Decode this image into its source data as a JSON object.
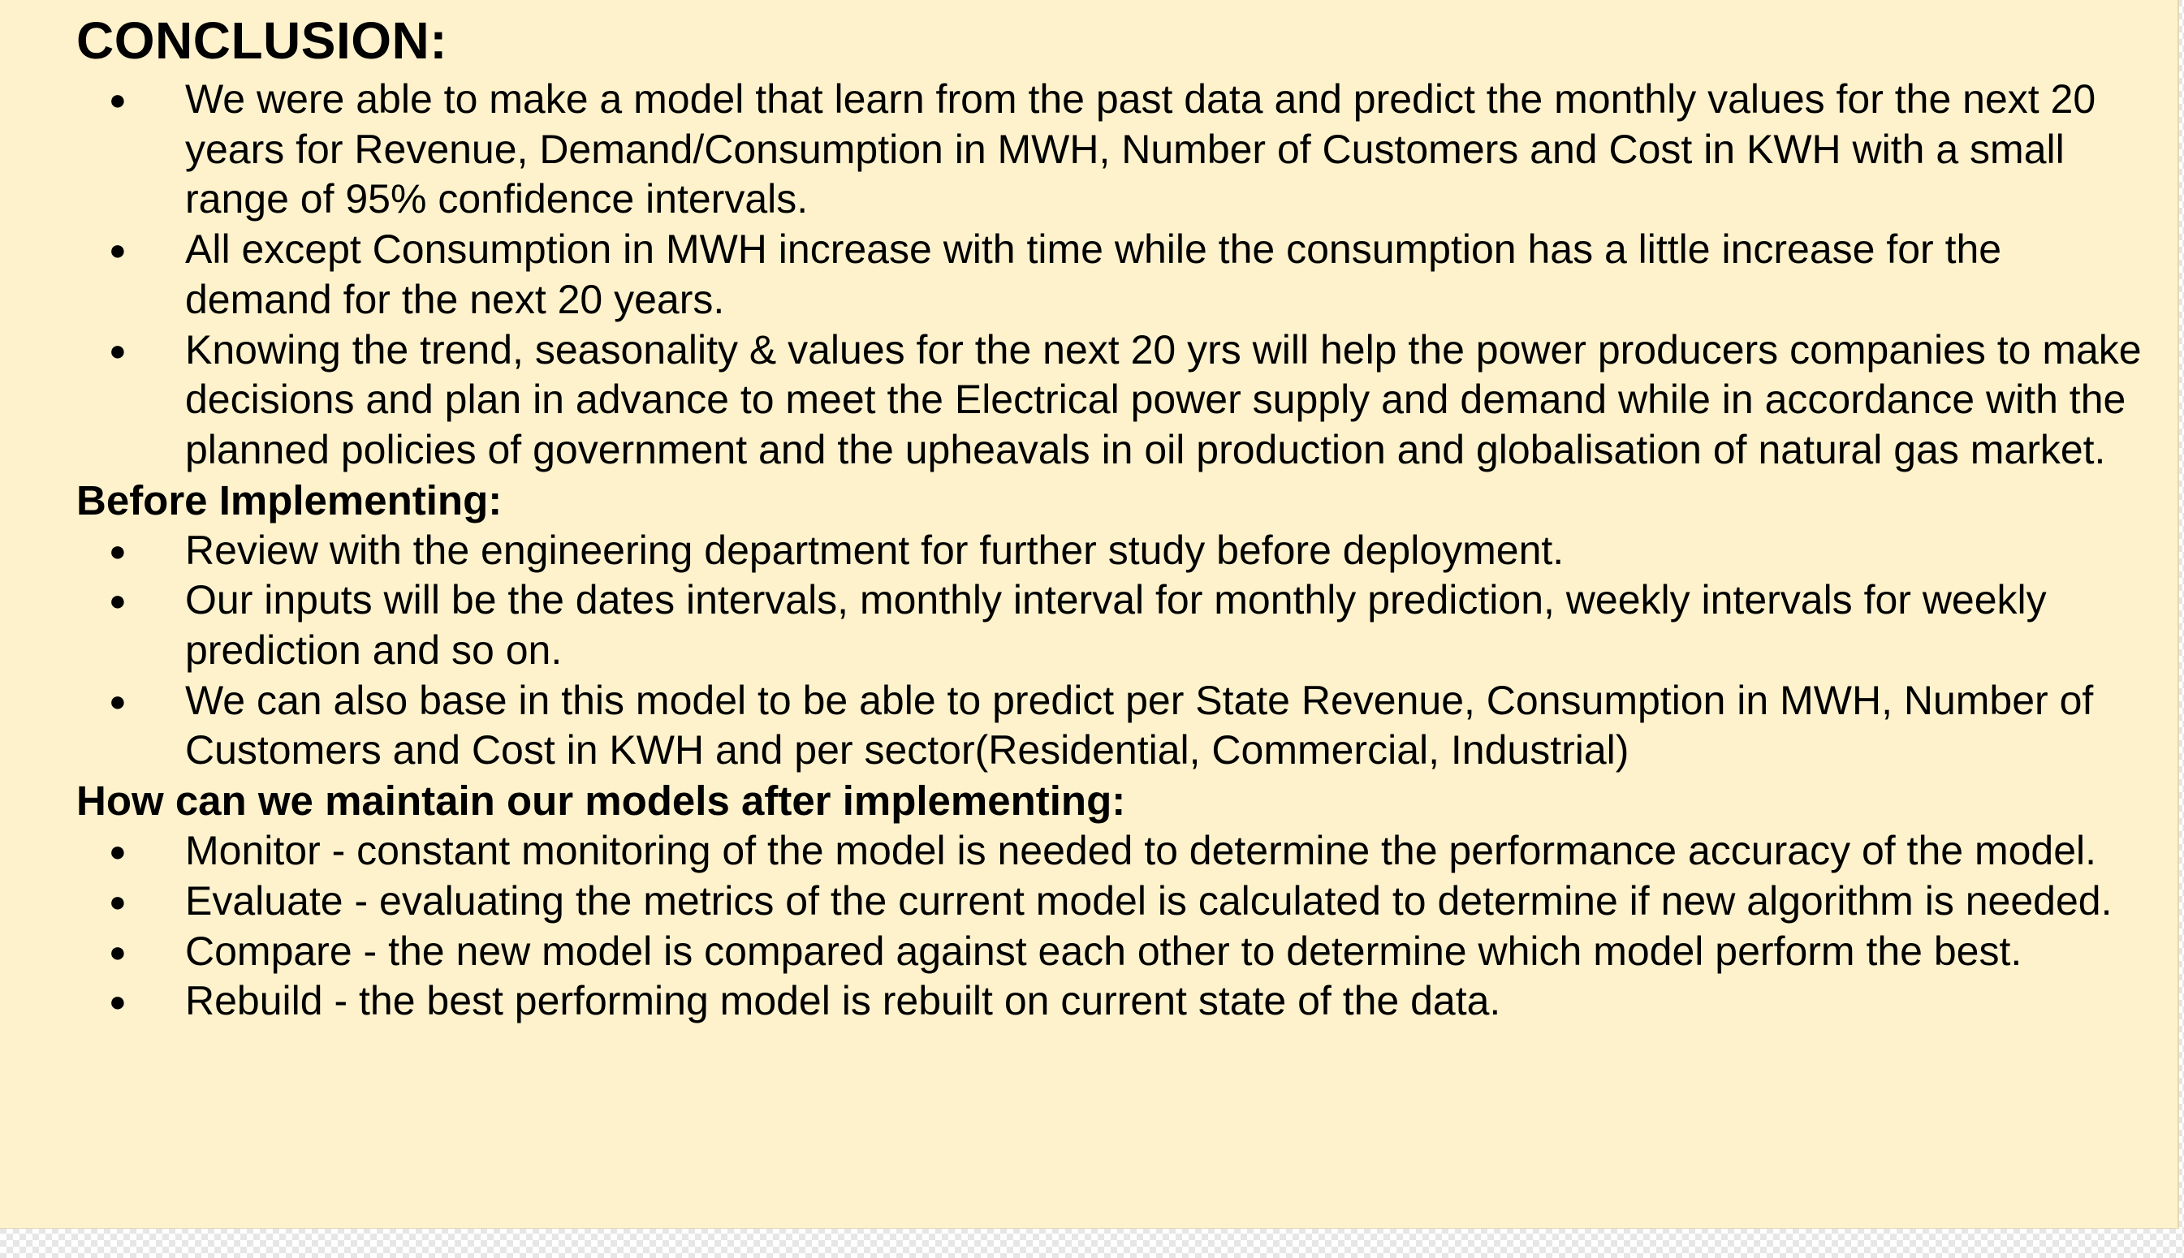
{
  "conclusion": {
    "title": "CONCLUSION:",
    "items": [
      "We were able to make a model that learn from the past data and predict the monthly values for the next 20 years for Revenue, Demand/Consumption in MWH, Number of Customers and Cost in KWH with a small range of 95% confidence intervals.",
      "All except Consumption in MWH increase with time while the consumption has a  little increase for the demand for the next 20 years.",
      "Knowing the trend, seasonality & values for the next 20 yrs will help the power producers companies to make decisions and plan in advance to meet the Electrical power supply and demand while in accordance with the planned policies of government and the  upheavals in oil production and globalisation of natural gas market."
    ]
  },
  "before": {
    "title": "Before Implementing:",
    "items": [
      "Review with the engineering department for further study before deployment.",
      "Our inputs will be the dates intervals, monthly interval for monthly prediction, weekly intervals for weekly prediction and so on.",
      "We can also base in this model to be able to  predict per State Revenue, Consumption in MWH, Number of Customers and Cost in KWH and per sector(Residential, Commercial, Industrial)"
    ]
  },
  "maintain": {
    "title": "How can we maintain our models after implementing:",
    "items": [
      "Monitor - constant monitoring of the model is needed to determine the performance accuracy of the model.",
      "Evaluate - evaluating the metrics of the current model is calculated to determine if new algorithm is needed.",
      "Compare - the new model is compared against each other to determine which model perform the best.",
      "Rebuild - the best performing model is rebuilt on current state of the data."
    ]
  },
  "bullet_glyph": "●",
  "colors": {
    "slide_background": "#fdf2cc",
    "text": "#000000"
  }
}
